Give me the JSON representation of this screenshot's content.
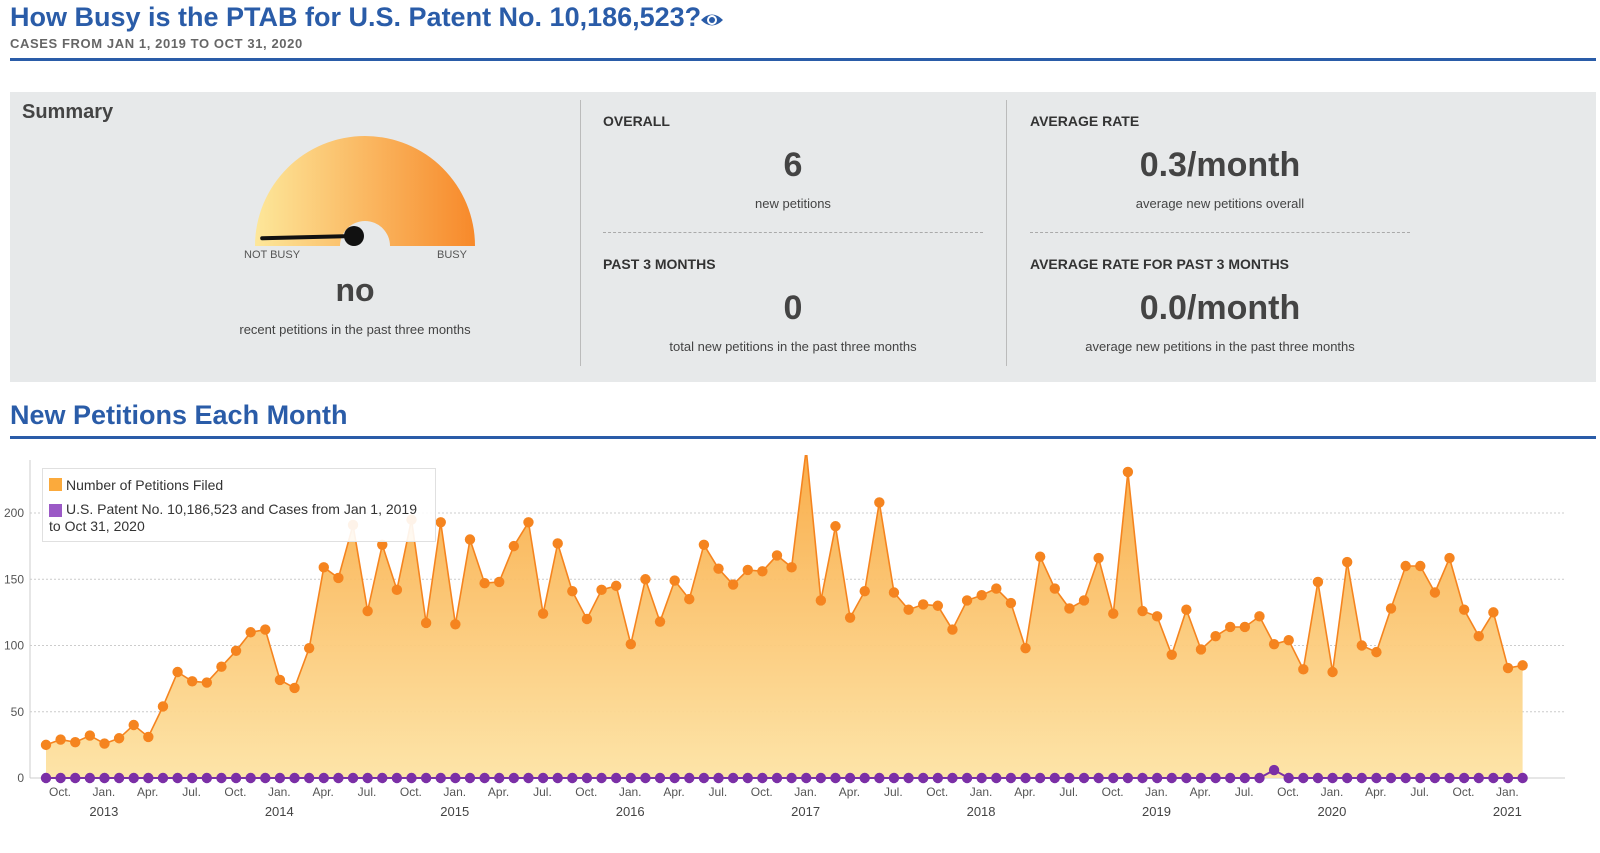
{
  "header": {
    "title": "How Busy is the PTAB for U.S. Patent No. 10,186,523?",
    "subtitle": "CASES FROM JAN 1, 2019 TO OCT 31, 2020"
  },
  "summary": {
    "title": "Summary",
    "gauge": {
      "left_label": "NOT BUSY",
      "right_label": "BUSY",
      "value_text": "no",
      "caption": "recent petitions in the past three months",
      "level": 0.02
    },
    "overall": {
      "label": "OVERALL",
      "value": "6",
      "caption": "new petitions"
    },
    "past3": {
      "label": "PAST 3 MONTHS",
      "value": "0",
      "caption": "total new petitions in the past three months"
    },
    "avg_rate": {
      "label": "AVERAGE RATE",
      "value": "0.3/month",
      "caption": "average new petitions overall"
    },
    "avg_rate3": {
      "label": "AVERAGE RATE FOR PAST 3 MONTHS",
      "value": "0.0/month",
      "caption": "average new petitions in the past three months"
    }
  },
  "section": {
    "title": "New Petitions Each Month"
  },
  "colors": {
    "accent": "#2a5ca8",
    "series1": "#f5841f",
    "series1_fill": "#fbc165",
    "series2": "#7b2fa6"
  },
  "chart_data": {
    "type": "area",
    "start_month": "2012-10",
    "ylim": [
      0,
      240
    ],
    "yticks": [
      0,
      50,
      100,
      150,
      200
    ],
    "xtick_labels": [
      "Oct.",
      "Jan.",
      "Apr.",
      "Jul."
    ],
    "year_labels": [
      "2013",
      "2014",
      "2015",
      "2016",
      "2017",
      "2018",
      "2019",
      "2020",
      "2021"
    ],
    "series": [
      {
        "name": "Number of Petitions Filed",
        "values": [
          25,
          29,
          27,
          32,
          26,
          30,
          40,
          31,
          54,
          80,
          73,
          72,
          84,
          96,
          110,
          112,
          74,
          68,
          98,
          159,
          151,
          191,
          126,
          176,
          142,
          195,
          117,
          193,
          116,
          180,
          147,
          148,
          175,
          193,
          124,
          177,
          141,
          120,
          142,
          145,
          101,
          150,
          118,
          149,
          135,
          176,
          158,
          146,
          157,
          156,
          168,
          159,
          248,
          134,
          190,
          121,
          141,
          208,
          140,
          127,
          131,
          130,
          112,
          134,
          138,
          143,
          132,
          98,
          167,
          143,
          128,
          134,
          166,
          124,
          231,
          126,
          122,
          93,
          127,
          97,
          107,
          114,
          114,
          122,
          101,
          104,
          82,
          148,
          80,
          163,
          100,
          95,
          128,
          160,
          160,
          140,
          166,
          127,
          107,
          125,
          83,
          85
        ]
      },
      {
        "name": "U.S. Patent No. 10,186,523 and Cases from Jan 1, 2019 to Oct 31, 2020",
        "values": [
          0,
          0,
          0,
          0,
          0,
          0,
          0,
          0,
          0,
          0,
          0,
          0,
          0,
          0,
          0,
          0,
          0,
          0,
          0,
          0,
          0,
          0,
          0,
          0,
          0,
          0,
          0,
          0,
          0,
          0,
          0,
          0,
          0,
          0,
          0,
          0,
          0,
          0,
          0,
          0,
          0,
          0,
          0,
          0,
          0,
          0,
          0,
          0,
          0,
          0,
          0,
          0,
          0,
          0,
          0,
          0,
          0,
          0,
          0,
          0,
          0,
          0,
          0,
          0,
          0,
          0,
          0,
          0,
          0,
          0,
          0,
          0,
          0,
          0,
          0,
          0,
          0,
          0,
          0,
          0,
          0,
          0,
          0,
          0,
          6,
          0,
          0,
          0,
          0,
          0,
          0,
          0,
          0,
          0,
          0,
          0,
          0,
          0,
          0,
          0,
          0,
          0
        ]
      }
    ]
  }
}
